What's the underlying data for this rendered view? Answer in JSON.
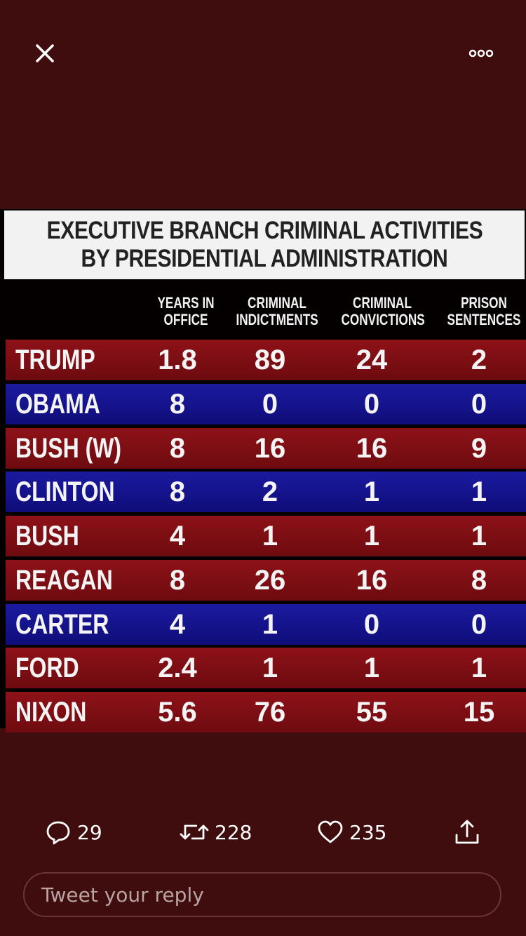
{
  "header": {
    "close_icon": "close-icon",
    "more_icon": "more-icon"
  },
  "infographic": {
    "title_line1": "EXECUTIVE BRANCH CRIMINAL ACTIVITIES",
    "title_line2": "BY PRESIDENTIAL ADMINISTRATION",
    "columns": [
      {
        "line1": "YEARS IN",
        "line2": "OFFICE"
      },
      {
        "line1": "CRIMINAL",
        "line2": "INDICTMENTS"
      },
      {
        "line1": "CRIMINAL",
        "line2": "CONVICTIONS"
      },
      {
        "line1": "PRISON",
        "line2": "SENTENCES"
      }
    ],
    "rows": [
      {
        "name": "TRUMP",
        "party_color": "#8d1218",
        "years": "1.8",
        "indictments": "89",
        "convictions": "24",
        "sentences": "2"
      },
      {
        "name": "OBAMA",
        "party_color": "#1b1aa0",
        "years": "8",
        "indictments": "0",
        "convictions": "0",
        "sentences": "0"
      },
      {
        "name": "BUSH (W)",
        "party_color": "#8d1218",
        "years": "8",
        "indictments": "16",
        "convictions": "16",
        "sentences": "9"
      },
      {
        "name": "CLINTON",
        "party_color": "#1b1aa0",
        "years": "8",
        "indictments": "2",
        "convictions": "1",
        "sentences": "1"
      },
      {
        "name": "BUSH",
        "party_color": "#8d1218",
        "years": "4",
        "indictments": "1",
        "convictions": "1",
        "sentences": "1"
      },
      {
        "name": "REAGAN",
        "party_color": "#8d1218",
        "years": "8",
        "indictments": "26",
        "convictions": "16",
        "sentences": "8"
      },
      {
        "name": "CARTER",
        "party_color": "#1b1aa0",
        "years": "4",
        "indictments": "1",
        "convictions": "0",
        "sentences": "0"
      },
      {
        "name": "FORD",
        "party_color": "#8d1218",
        "years": "2.4",
        "indictments": "1",
        "convictions": "1",
        "sentences": "1"
      },
      {
        "name": "NIXON",
        "party_color": "#8d1218",
        "years": "5.6",
        "indictments": "76",
        "convictions": "55",
        "sentences": "15"
      }
    ]
  },
  "actions": {
    "reply_count": "29",
    "retweet_count": "228",
    "like_count": "235",
    "reply_icon": "reply-icon",
    "retweet_icon": "retweet-icon",
    "like_icon": "like-icon",
    "share_icon": "share-icon"
  },
  "reply_input": {
    "placeholder": "Tweet your reply"
  },
  "colors": {
    "background": "#3f0d0d",
    "republican_row": "#8d1218",
    "democrat_row": "#1b1aa0"
  }
}
